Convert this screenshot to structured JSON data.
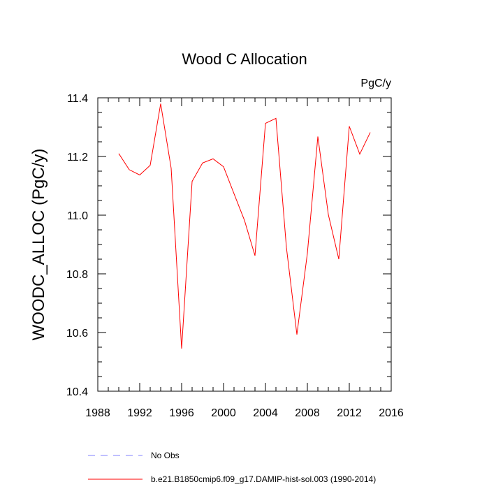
{
  "chart_data": {
    "type": "line",
    "title": "Wood C Allocation",
    "units_label": "PgC/y",
    "ylabel": "WOODC_ALLOC  (PgC/y)",
    "xlabel": "",
    "xlim": [
      1988,
      2016
    ],
    "ylim": [
      10.4,
      11.4
    ],
    "x_ticks": [
      1988,
      1992,
      1996,
      2000,
      2004,
      2008,
      2012,
      2016
    ],
    "x_tick_labels": [
      "1988",
      "1992",
      "1996",
      "2000",
      "2004",
      "2008",
      "2012",
      "2016"
    ],
    "y_ticks": [
      10.4,
      10.6,
      10.8,
      11.0,
      11.2,
      11.4
    ],
    "y_tick_labels": [
      "10.4",
      "10.6",
      "10.8",
      "11.0",
      "11.2",
      "11.4"
    ],
    "grid": false,
    "legend_position": "bottom",
    "series": [
      {
        "name": "No Obs",
        "color": "#8080ff",
        "dash": "dashed",
        "x": [],
        "values": []
      },
      {
        "name": "b.e21.B1850cmip6.f09_g17.DAMIP-hist-sol.003 (1990-2014)",
        "color": "#ff0000",
        "dash": "solid",
        "x": [
          1990,
          1991,
          1992,
          1993,
          1994,
          1995,
          1996,
          1997,
          1998,
          1999,
          2000,
          2001,
          2002,
          2003,
          2004,
          2005,
          2006,
          2007,
          2008,
          2009,
          2010,
          2011,
          2012,
          2013,
          2014
        ],
        "values": [
          11.21,
          11.155,
          11.137,
          11.17,
          11.38,
          11.16,
          10.545,
          11.115,
          11.178,
          11.192,
          11.165,
          11.073,
          10.982,
          10.862,
          11.313,
          11.33,
          10.89,
          10.593,
          10.87,
          11.268,
          11.002,
          10.85,
          11.303,
          11.208,
          11.282
        ]
      }
    ]
  }
}
